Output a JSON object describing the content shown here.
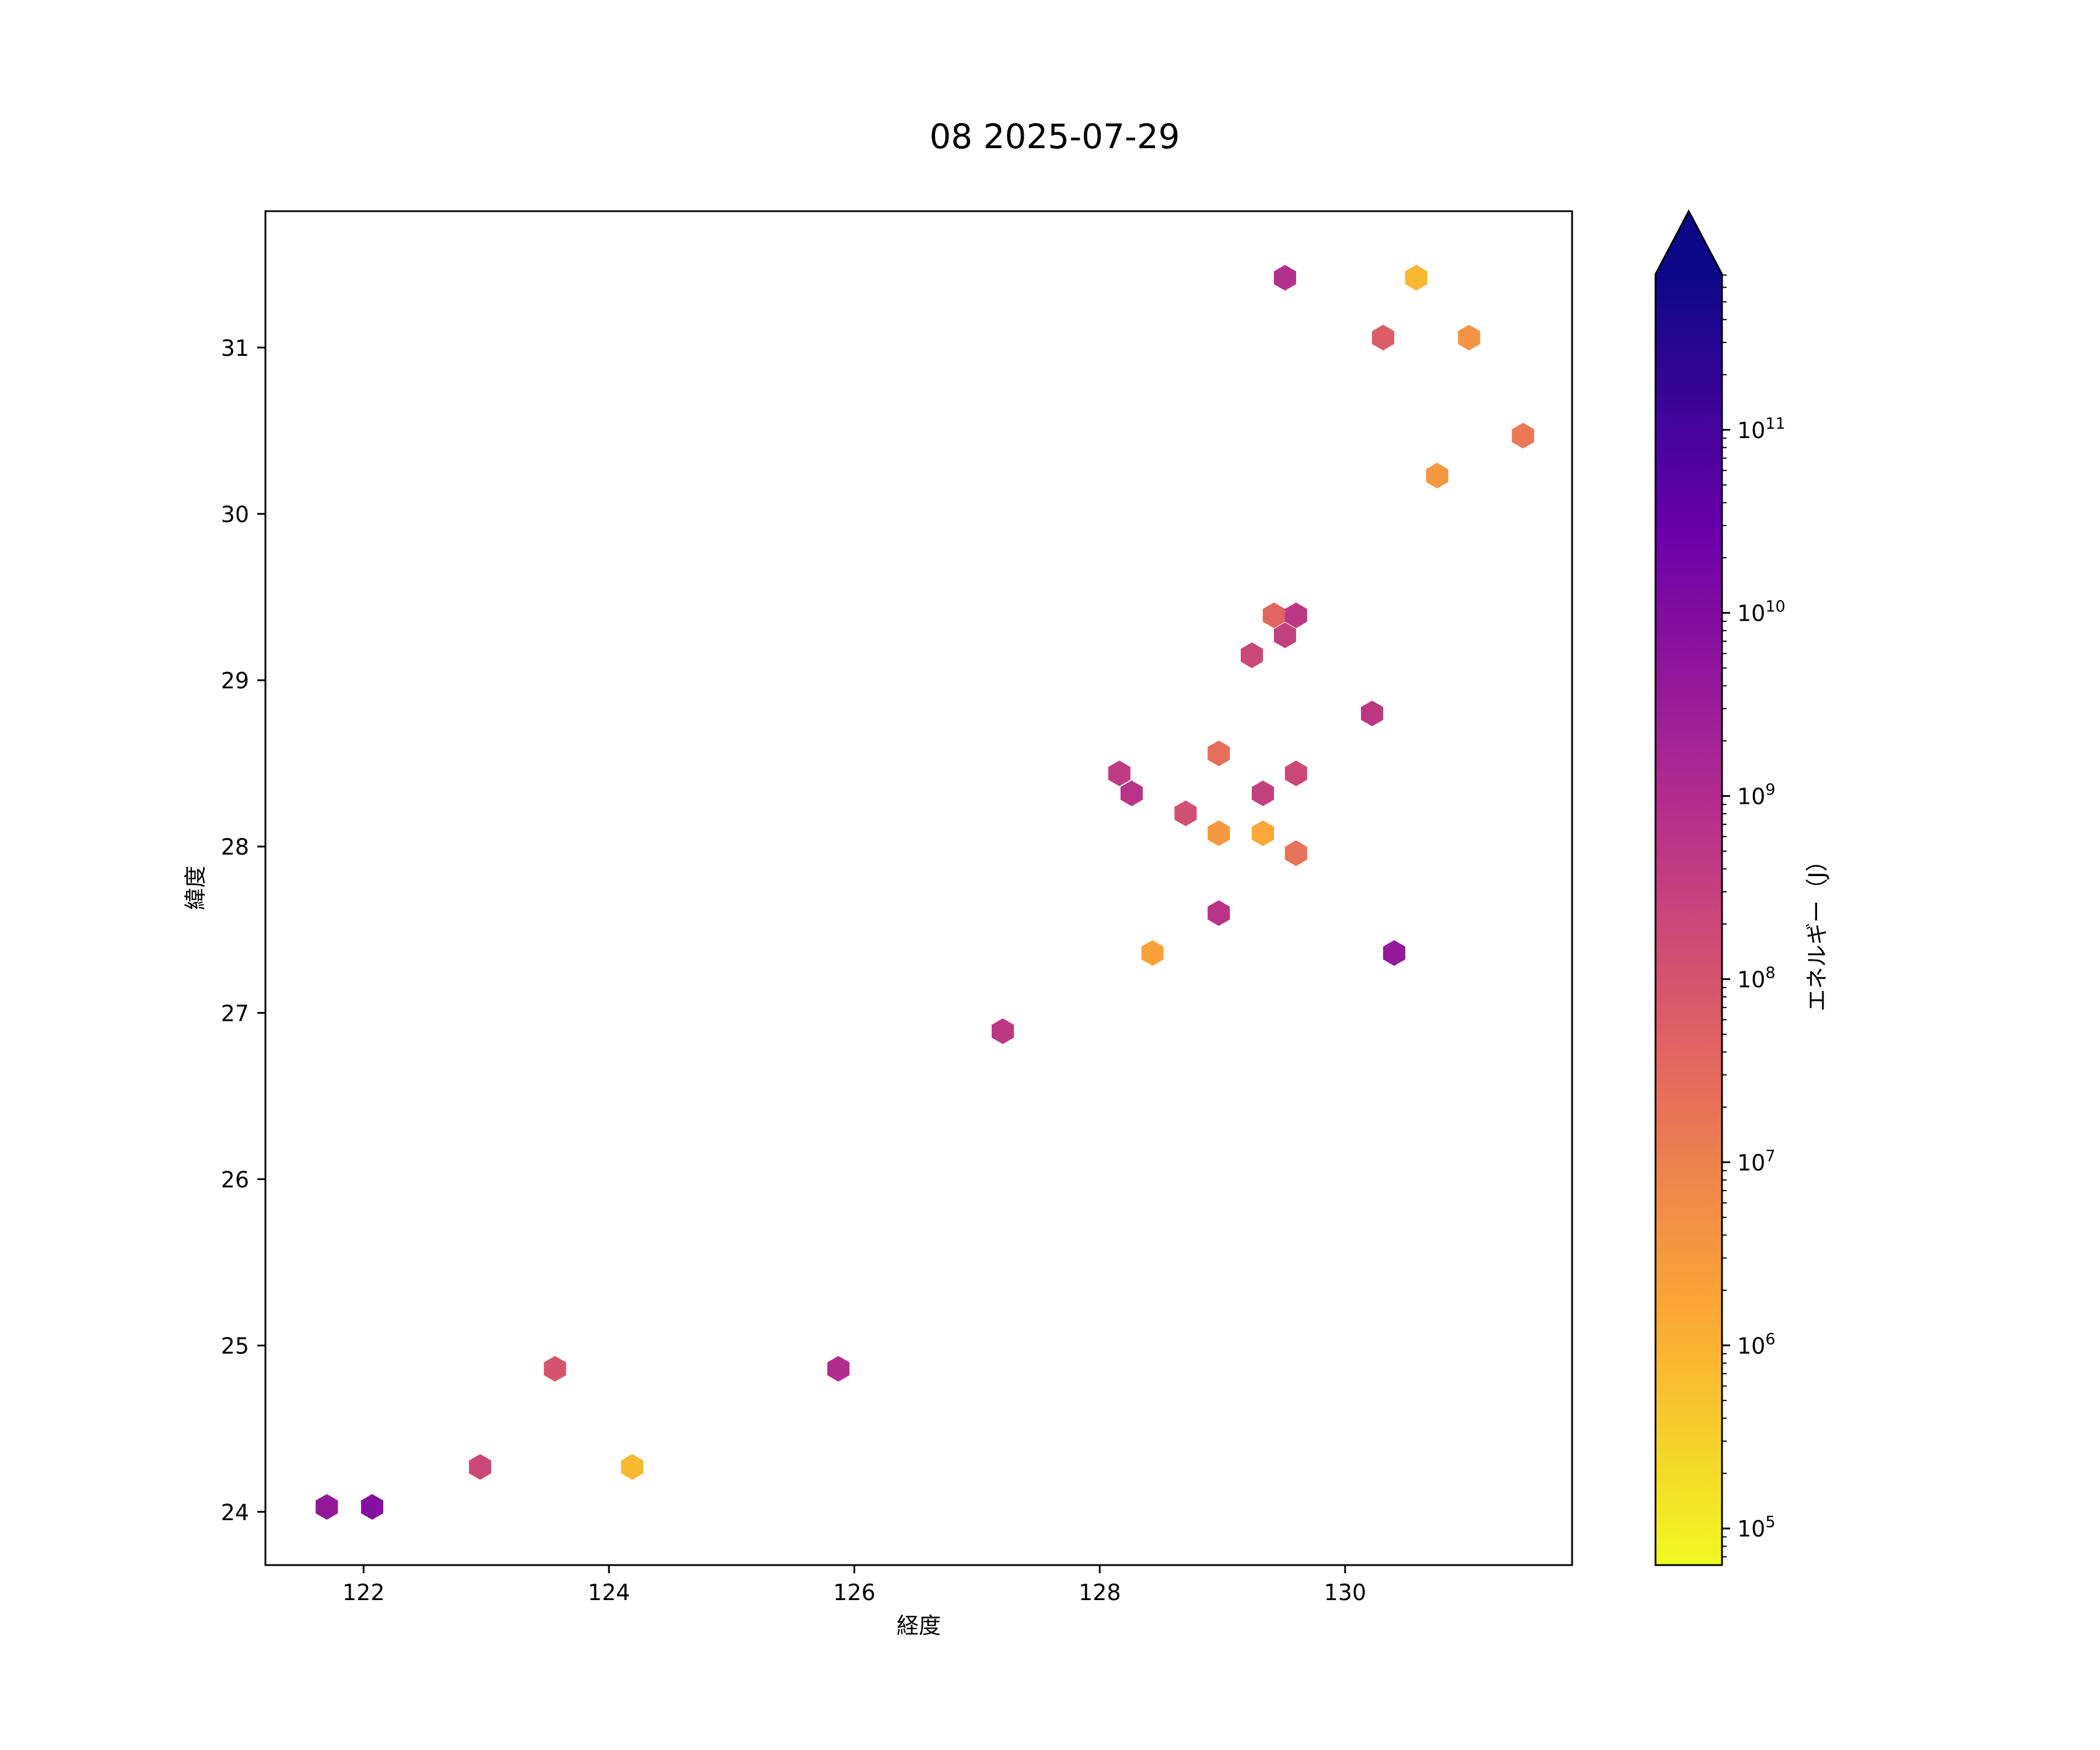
{
  "chart_data": {
    "type": "scatter",
    "marker": "hexagon",
    "title": "08 2025-07-29",
    "xlabel": "経度",
    "ylabel": "緯度",
    "xlim": [
      121.2,
      131.85
    ],
    "ylim": [
      23.68,
      31.82
    ],
    "xticks": [
      122,
      124,
      126,
      128,
      130
    ],
    "yticks": [
      24,
      25,
      26,
      27,
      28,
      29,
      30,
      31
    ],
    "grid": false,
    "colorbar": {
      "label": "エネルギー（J）",
      "scale": "log",
      "colormap": "plasma_r",
      "range_exp": [
        4.8,
        11.85
      ],
      "extend": "max",
      "ticks_exp": [
        5,
        6,
        7,
        8,
        9,
        10,
        11
      ],
      "stops": [
        "#f0f921",
        "#fca636",
        "#e16462",
        "#b12a90",
        "#6a00a8",
        "#0d0887"
      ]
    },
    "points": [
      {
        "x": 121.7,
        "y": 24.03,
        "e": 9.6
      },
      {
        "x": 122.07,
        "y": 24.03,
        "e": 9.9
      },
      {
        "x": 122.95,
        "y": 24.27,
        "e": 8.3
      },
      {
        "x": 123.56,
        "y": 24.86,
        "e": 8.0
      },
      {
        "x": 124.19,
        "y": 24.27,
        "e": 5.9
      },
      {
        "x": 125.87,
        "y": 24.86,
        "e": 9.0
      },
      {
        "x": 127.21,
        "y": 26.89,
        "e": 8.7
      },
      {
        "x": 128.16,
        "y": 28.44,
        "e": 8.6
      },
      {
        "x": 128.26,
        "y": 28.32,
        "e": 8.8
      },
      {
        "x": 128.43,
        "y": 27.36,
        "e": 6.3
      },
      {
        "x": 128.7,
        "y": 28.2,
        "e": 8.1
      },
      {
        "x": 128.97,
        "y": 28.56,
        "e": 7.4
      },
      {
        "x": 128.97,
        "y": 28.08,
        "e": 6.5
      },
      {
        "x": 128.97,
        "y": 27.6,
        "e": 8.8
      },
      {
        "x": 129.24,
        "y": 29.15,
        "e": 8.3
      },
      {
        "x": 129.33,
        "y": 28.32,
        "e": 8.5
      },
      {
        "x": 129.33,
        "y": 28.08,
        "e": 6.2
      },
      {
        "x": 129.42,
        "y": 29.39,
        "e": 7.6
      },
      {
        "x": 129.51,
        "y": 29.27,
        "e": 8.5
      },
      {
        "x": 129.51,
        "y": 31.42,
        "e": 8.9
      },
      {
        "x": 129.6,
        "y": 29.39,
        "e": 8.7
      },
      {
        "x": 129.6,
        "y": 28.44,
        "e": 8.3
      },
      {
        "x": 129.6,
        "y": 27.96,
        "e": 7.3
      },
      {
        "x": 130.22,
        "y": 28.8,
        "e": 8.7
      },
      {
        "x": 130.31,
        "y": 31.06,
        "e": 7.8
      },
      {
        "x": 130.4,
        "y": 27.36,
        "e": 9.6
      },
      {
        "x": 130.58,
        "y": 31.42,
        "e": 5.9
      },
      {
        "x": 130.75,
        "y": 30.23,
        "e": 6.5
      },
      {
        "x": 131.01,
        "y": 31.06,
        "e": 6.6
      },
      {
        "x": 131.45,
        "y": 30.47,
        "e": 7.2
      }
    ]
  }
}
